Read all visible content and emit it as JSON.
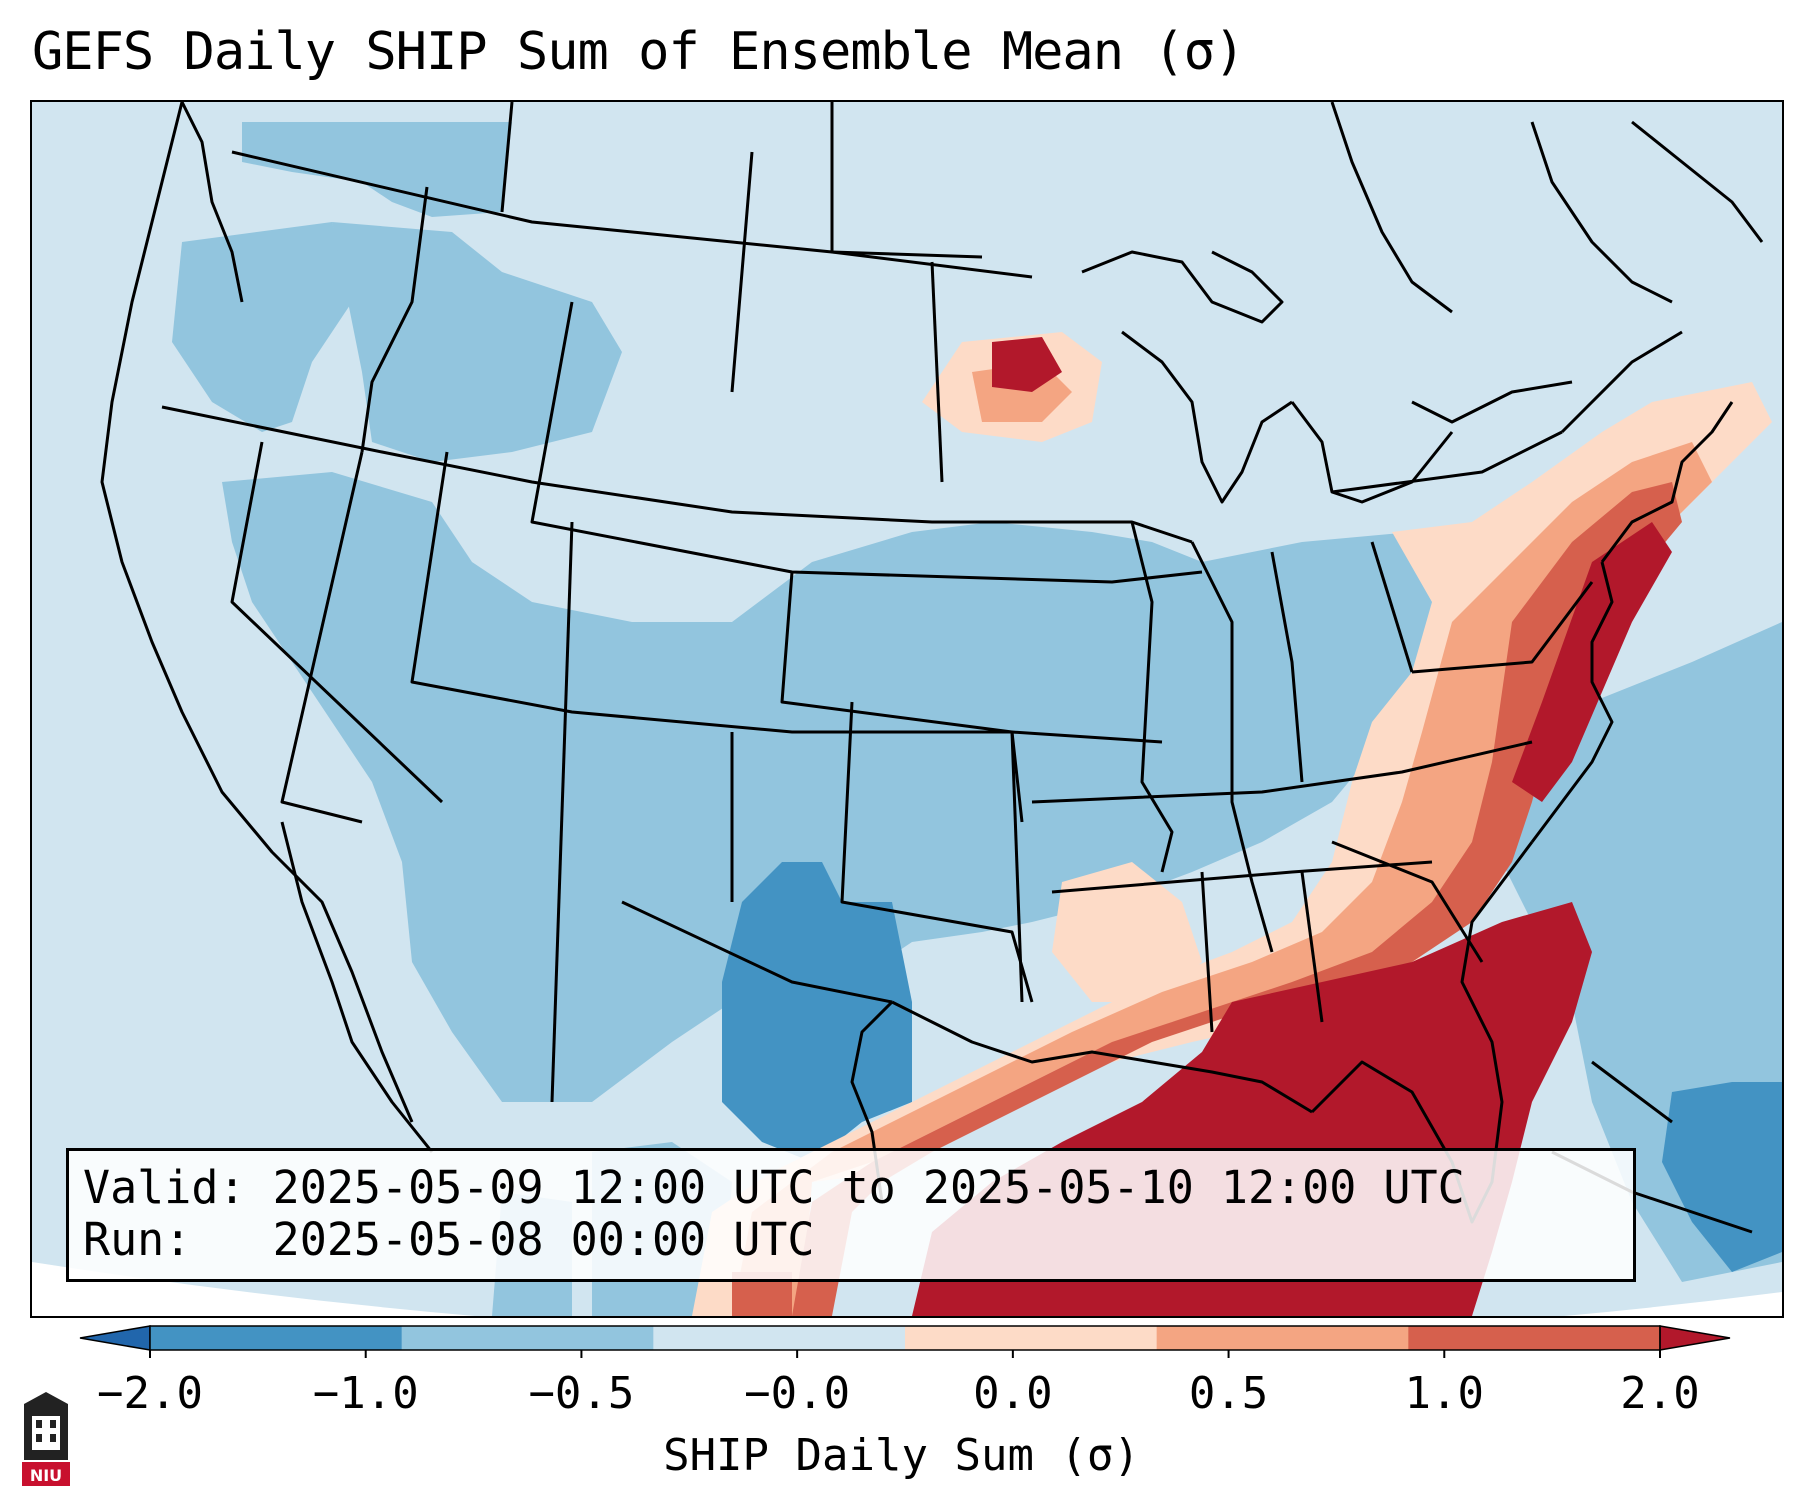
{
  "title": "GEFS Daily SHIP Sum of Ensemble Mean (σ)",
  "info": {
    "valid_line": "Valid: 2025-05-09 12:00 UTC to 2025-05-10 12:00 UTC",
    "run_line": "Run:   2025-05-08 00:00 UTC"
  },
  "colorbar": {
    "label": "SHIP Daily Sum (σ)",
    "ticks": [
      "−2.0",
      "−1.0",
      "−0.5",
      "−0.0",
      "0.0",
      "0.5",
      "1.0",
      "2.0"
    ],
    "colors": [
      "#2166ac",
      "#4393c3",
      "#92c5de",
      "#d1e5f0",
      "#fddbc7",
      "#f4a582",
      "#d6604d",
      "#b2182b"
    ],
    "extend": "both"
  },
  "colors": {
    "outside_domain": "#ffffff",
    "borders": "#000000"
  },
  "logo": {
    "text": "NIU"
  }
}
